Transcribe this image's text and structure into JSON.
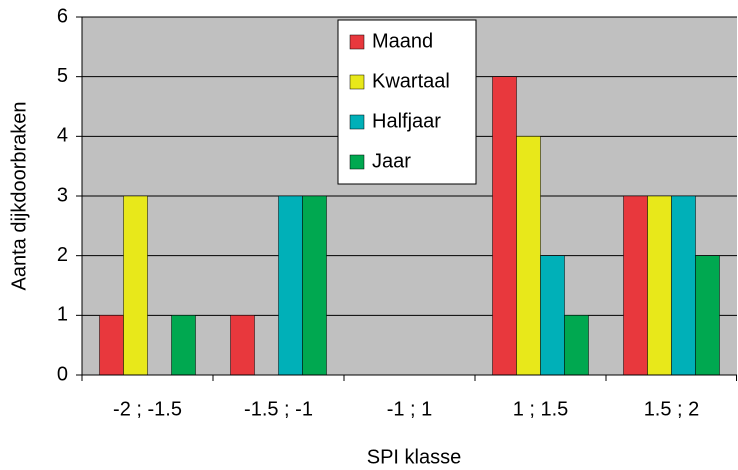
{
  "chart_data": {
    "type": "bar",
    "x_label": "SPI klasse",
    "y_label": "Aanta dijkdoorbraken",
    "categories": [
      "-2 ; -1.5",
      "-1.5 ; -1",
      "-1 ; 1",
      "1 ; 1.5",
      "1.5 ; 2"
    ],
    "series": [
      {
        "name": "Maand",
        "color": "#e8383d",
        "values": [
          1,
          1,
          0,
          5,
          3
        ]
      },
      {
        "name": "Kwartaal",
        "color": "#e8e81a",
        "values": [
          3,
          0,
          0,
          4,
          3
        ]
      },
      {
        "name": "Halfjaar",
        "color": "#00b0b8",
        "values": [
          0,
          3,
          0,
          2,
          3
        ]
      },
      {
        "name": "Jaar",
        "color": "#00a850",
        "values": [
          1,
          3,
          0,
          1,
          2
        ]
      }
    ],
    "ylim": [
      0,
      6
    ],
    "yticks": [
      0,
      1,
      2,
      3,
      4,
      5,
      6
    ],
    "grid": true,
    "background": "#c0c0c0",
    "legend": "top"
  }
}
